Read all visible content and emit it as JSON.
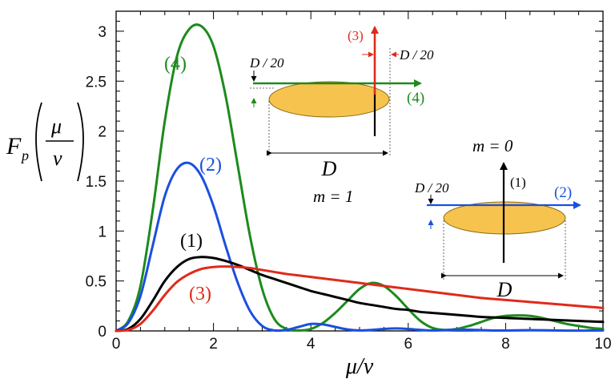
{
  "chart_data": {
    "type": "line",
    "title": "",
    "xlabel": "μ/v",
    "ylabel": "F_p(μ/v)",
    "xlim": [
      0,
      10
    ],
    "ylim": [
      0,
      3.2
    ],
    "grid": false,
    "xticks": [
      "0",
      "2",
      "4",
      "6",
      "8",
      "10"
    ],
    "yticks": [
      "0",
      "0.5",
      "1",
      "1.5",
      "2",
      "2.5",
      "3"
    ],
    "x": [
      0,
      0.25,
      0.5,
      0.75,
      1.0,
      1.25,
      1.5,
      1.75,
      2.0,
      2.25,
      2.5,
      2.75,
      3.0,
      3.25,
      3.5,
      3.75,
      4.0,
      4.25,
      4.5,
      4.75,
      5.0,
      5.25,
      5.5,
      5.75,
      6.0,
      6.25,
      6.5,
      6.75,
      7.0,
      7.25,
      7.5,
      7.75,
      8.0,
      8.25,
      8.5,
      8.75,
      9.0,
      9.25,
      9.5,
      9.75,
      10.0
    ],
    "series": [
      {
        "name": "(1)",
        "color": "#000000",
        "values": [
          0,
          0.02,
          0.12,
          0.3,
          0.5,
          0.64,
          0.72,
          0.74,
          0.73,
          0.7,
          0.66,
          0.61,
          0.56,
          0.52,
          0.48,
          0.44,
          0.4,
          0.37,
          0.34,
          0.31,
          0.28,
          0.26,
          0.24,
          0.22,
          0.21,
          0.19,
          0.18,
          0.17,
          0.16,
          0.15,
          0.14,
          0.135,
          0.13,
          0.125,
          0.12,
          0.115,
          0.11,
          0.105,
          0.1,
          0.095,
          0.09
        ]
      },
      {
        "name": "(2)",
        "color": "#1a4fe0",
        "values": [
          0,
          0.08,
          0.35,
          0.85,
          1.35,
          1.62,
          1.68,
          1.55,
          1.25,
          0.85,
          0.48,
          0.2,
          0.05,
          0.005,
          0.01,
          0.04,
          0.07,
          0.065,
          0.04,
          0.015,
          0.005,
          0.01,
          0.02,
          0.025,
          0.02,
          0.01,
          0.005,
          0.008,
          0.012,
          0.012,
          0.008,
          0.004,
          0.004,
          0.006,
          0.008,
          0.007,
          0.005,
          0.003,
          0.003,
          0.004,
          0.005
        ]
      },
      {
        "name": "(3)",
        "color": "#e02a1a",
        "values": [
          0,
          0.01,
          0.07,
          0.2,
          0.36,
          0.49,
          0.57,
          0.62,
          0.64,
          0.645,
          0.64,
          0.63,
          0.61,
          0.59,
          0.57,
          0.555,
          0.54,
          0.525,
          0.51,
          0.495,
          0.48,
          0.465,
          0.45,
          0.435,
          0.42,
          0.405,
          0.39,
          0.375,
          0.36,
          0.345,
          0.33,
          0.32,
          0.31,
          0.3,
          0.29,
          0.28,
          0.27,
          0.26,
          0.25,
          0.24,
          0.23
        ]
      },
      {
        "name": "(4)",
        "color": "#1d8a1d",
        "values": [
          0,
          0.1,
          0.45,
          1.2,
          2.1,
          2.75,
          3.02,
          3.05,
          2.85,
          2.35,
          1.65,
          0.95,
          0.42,
          0.12,
          0.02,
          0.005,
          0.02,
          0.08,
          0.18,
          0.3,
          0.42,
          0.48,
          0.45,
          0.35,
          0.22,
          0.1,
          0.03,
          0.01,
          0.02,
          0.05,
          0.09,
          0.13,
          0.15,
          0.155,
          0.15,
          0.13,
          0.1,
          0.07,
          0.05,
          0.03,
          0.02
        ]
      }
    ],
    "annotations": {
      "curve_labels": [
        "(1)",
        "(2)",
        "(3)",
        "(4)"
      ],
      "m1_label": "m = 1",
      "m0_label": "m = 0",
      "offset_label": "D / 20",
      "diameter_label": "D",
      "arrow_labels": [
        "(1)",
        "(2)",
        "(3)",
        "(4)"
      ]
    }
  },
  "colors": {
    "disk_fill": "#f7c34f",
    "disk_stroke": "#8a6a10",
    "curve1": "#000000",
    "curve2": "#1a4fe0",
    "curve3": "#e02a1a",
    "curve4": "#1d8a1d"
  }
}
